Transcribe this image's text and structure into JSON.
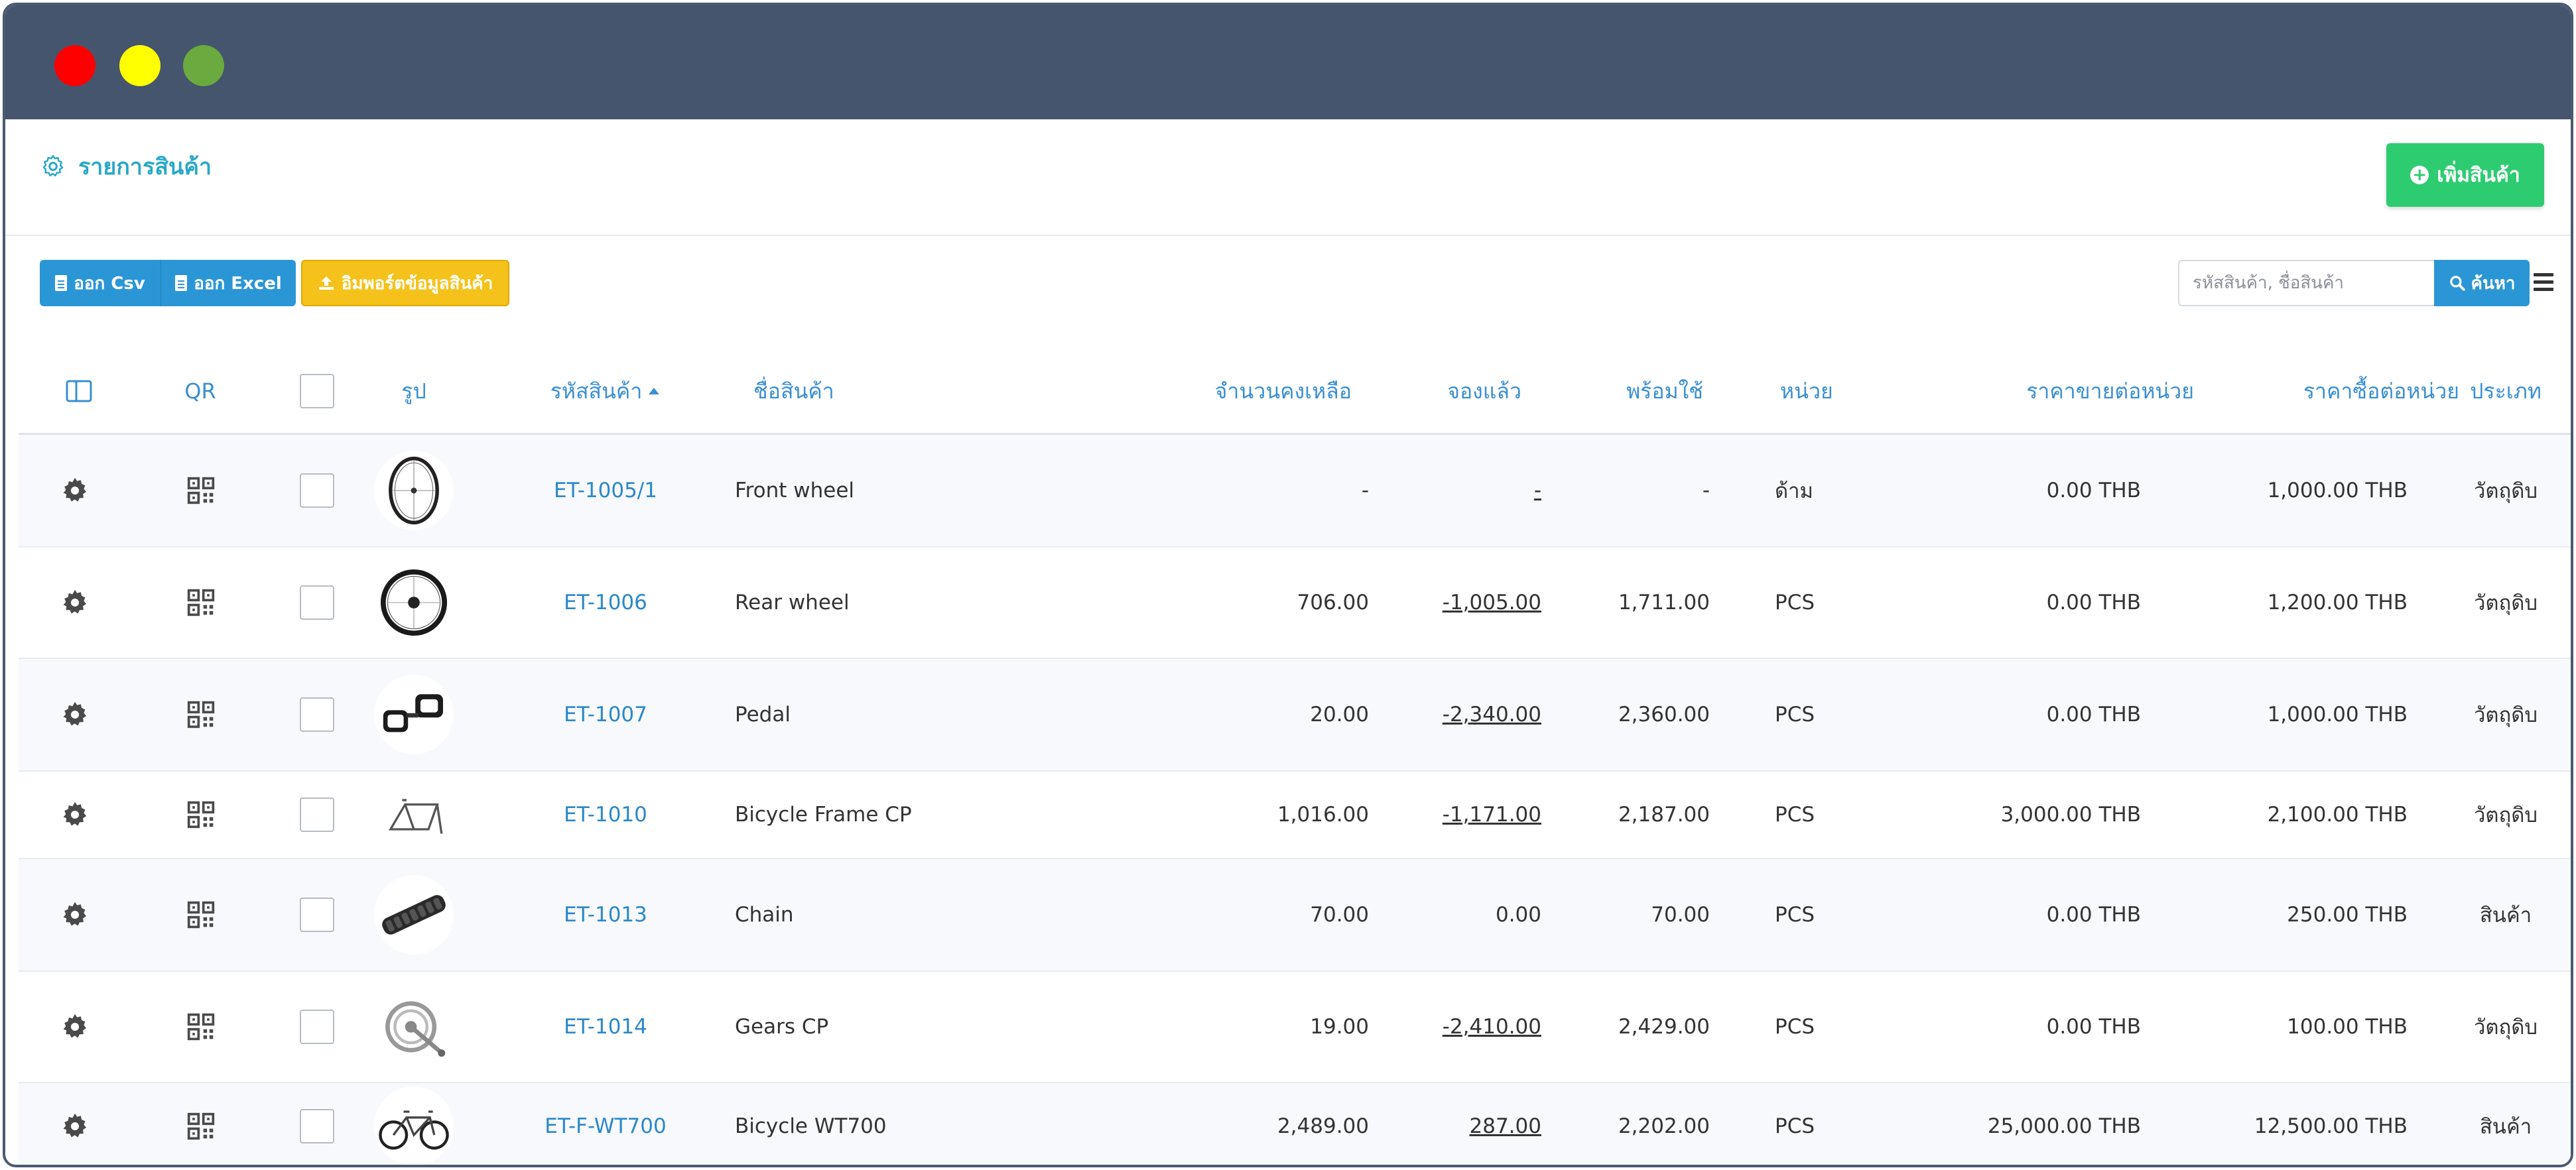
{
  "header": {
    "title": "รายการสินค้า",
    "add_button": "เพิ่มสินค้า"
  },
  "toolbar": {
    "export_csv": "ออก Csv",
    "export_excel": "ออก Excel",
    "import": "อิมพอร์ตข้อมูลสินค้า",
    "search_placeholder": "รหัสสินค้า, ชื่อสินค้า",
    "search_button": "ค้นหา"
  },
  "table": {
    "columns": {
      "qr": "QR",
      "image": "รูป",
      "code": "รหัสสินค้า",
      "name": "ชื่อสินค้า",
      "stock": "จำนวนคงเหลือ",
      "reserved": "จองแล้ว",
      "available": "พร้อมใช้",
      "unit": "หน่วย",
      "sell_price": "ราคาขายต่อหน่วย",
      "buy_price": "ราคาซื้อต่อหน่วย",
      "type": "ประเภท"
    },
    "rows": [
      {
        "code": "ET-1005/1",
        "name": "Front wheel",
        "stock": "-",
        "reserved": "-",
        "available": "-",
        "unit": "ด้าม",
        "sell_price": "0.00 THB",
        "buy_price": "1,000.00 THB",
        "type": "วัตถุดิบ"
      },
      {
        "code": "ET-1006",
        "name": "Rear wheel",
        "stock": "706.00",
        "reserved": "-1,005.00",
        "available": "1,711.00",
        "unit": "PCS",
        "sell_price": "0.00 THB",
        "buy_price": "1,200.00 THB",
        "type": "วัตถุดิบ"
      },
      {
        "code": "ET-1007",
        "name": "Pedal",
        "stock": "20.00",
        "reserved": "-2,340.00",
        "available": "2,360.00",
        "unit": "PCS",
        "sell_price": "0.00 THB",
        "buy_price": "1,000.00 THB",
        "type": "วัตถุดิบ"
      },
      {
        "code": "ET-1010",
        "name": "Bicycle Frame CP",
        "stock": "1,016.00",
        "reserved": "-1,171.00",
        "available": "2,187.00",
        "unit": "PCS",
        "sell_price": "3,000.00 THB",
        "buy_price": "2,100.00 THB",
        "type": "วัตถุดิบ"
      },
      {
        "code": "ET-1013",
        "name": "Chain",
        "stock": "70.00",
        "reserved": "0.00",
        "available": "70.00",
        "unit": "PCS",
        "sell_price": "0.00 THB",
        "buy_price": "250.00 THB",
        "type": "สินค้า"
      },
      {
        "code": "ET-1014",
        "name": "Gears CP",
        "stock": "19.00",
        "reserved": "-2,410.00",
        "available": "2,429.00",
        "unit": "PCS",
        "sell_price": "0.00 THB",
        "buy_price": "100.00 THB",
        "type": "วัตถุดิบ"
      },
      {
        "code": "ET-F-WT700",
        "name": "Bicycle WT700",
        "stock": "2,489.00",
        "reserved": "287.00",
        "available": "2,202.00",
        "unit": "PCS",
        "sell_price": "25,000.00 THB",
        "buy_price": "12,500.00 THB",
        "type": "สินค้า"
      }
    ]
  },
  "colors": {
    "titlebar": "#45556d",
    "accent_blue": "#2b96d6",
    "accent_green": "#2ecc71",
    "accent_yellow": "#f5c21b",
    "link_blue": "#2b88c8"
  },
  "icons": {
    "title": "gear-outline-icon",
    "add": "plus-circle-icon",
    "search": "search-icon",
    "menu": "hamburger-menu-icon",
    "row_settings": "gear-icon",
    "row_qr": "qr-code-icon",
    "column_toggle": "columns-icon",
    "sort": "sort-asc-icon"
  }
}
